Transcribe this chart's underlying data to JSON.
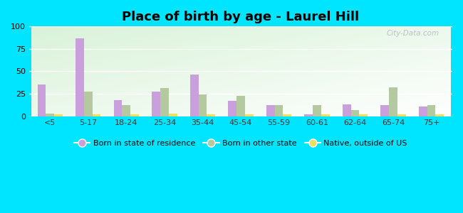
{
  "title": "Place of birth by age - Laurel Hill",
  "categories": [
    "<5",
    "5-17",
    "18-24",
    "25-34",
    "35-44",
    "45-54",
    "55-59",
    "60-61",
    "62-64",
    "65-74",
    "75+"
  ],
  "born_in_state": [
    35,
    87,
    18,
    27,
    46,
    17,
    12,
    2,
    13,
    12,
    11
  ],
  "born_other_state": [
    3,
    27,
    12,
    31,
    24,
    23,
    12,
    12,
    7,
    32,
    12
  ],
  "native_outside_us": [
    2,
    2,
    2,
    3,
    2,
    2,
    2,
    2,
    2,
    2,
    2
  ],
  "color_state": "#c9a0dc",
  "color_other_state": "#b5c9a0",
  "color_native": "#f0e060",
  "ylim": [
    0,
    100
  ],
  "yticks": [
    0,
    25,
    50,
    75,
    100
  ],
  "figure_bg": "#00e5ff",
  "legend_labels": [
    "Born in state of residence",
    "Born in other state",
    "Native, outside of US"
  ],
  "watermark": "City-Data.com"
}
